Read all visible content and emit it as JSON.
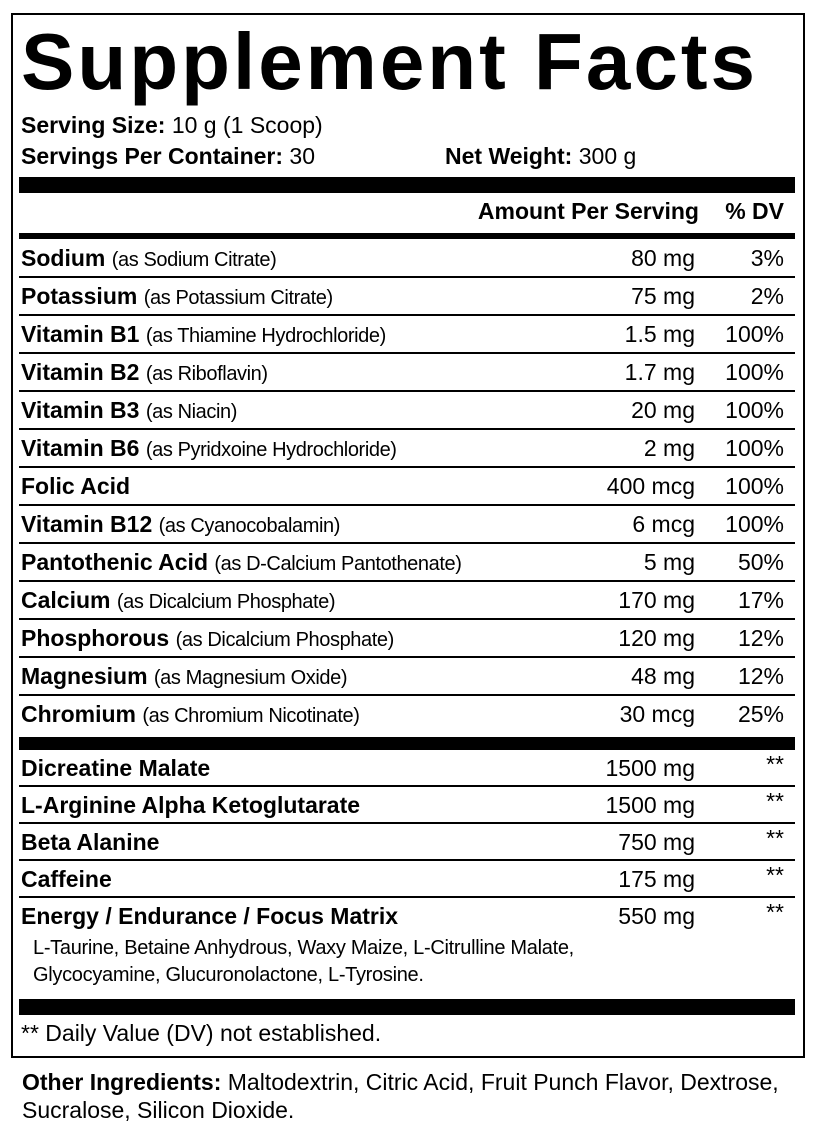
{
  "title": "Supplement Facts",
  "serving_size_label": "Serving Size:",
  "serving_size": "10 g (1 Scoop)",
  "servings_label": "Servings Per Container:",
  "servings": "30",
  "net_weight_label": "Net Weight:",
  "net_weight": "300 g",
  "header": {
    "amount": "Amount Per Serving",
    "dv": "% DV"
  },
  "vitamins": [
    {
      "name": "Sodium",
      "note": "(as Sodium Citrate)",
      "amount": "80 mg",
      "dv": "3%"
    },
    {
      "name": "Potassium",
      "note": "(as Potassium Citrate)",
      "amount": "75 mg",
      "dv": "2%"
    },
    {
      "name": "Vitamin B1",
      "note": "(as Thiamine Hydrochloride)",
      "amount": "1.5 mg",
      "dv": "100%"
    },
    {
      "name": "Vitamin B2",
      "note": "(as Riboflavin)",
      "amount": "1.7 mg",
      "dv": "100%"
    },
    {
      "name": "Vitamin B3",
      "note": "(as Niacin)",
      "amount": "20 mg",
      "dv": "100%"
    },
    {
      "name": "Vitamin B6",
      "note": "(as Pyridxoine Hydrochloride)",
      "amount": "2 mg",
      "dv": "100%"
    },
    {
      "name": "Folic Acid",
      "note": "",
      "amount": "400 mcg",
      "dv": "100%"
    },
    {
      "name": "Vitamin B12",
      "note": "(as Cyanocobalamin)",
      "amount": "6 mcg",
      "dv": "100%"
    },
    {
      "name": "Pantothenic Acid",
      "note": "(as D-Calcium Pantothenate)",
      "amount": "5 mg",
      "dv": "50%"
    },
    {
      "name": "Calcium",
      "note": "(as Dicalcium Phosphate)",
      "amount": "170 mg",
      "dv": "17%"
    },
    {
      "name": "Phosphorous",
      "note": "(as Dicalcium Phosphate)",
      "amount": "120 mg",
      "dv": "12%"
    },
    {
      "name": "Magnesium",
      "note": "(as Magnesium Oxide)",
      "amount": "48 mg",
      "dv": "12%"
    },
    {
      "name": "Chromium",
      "note": "(as Chromium Nicotinate)",
      "amount": "30 mcg",
      "dv": "25%"
    }
  ],
  "others": [
    {
      "name": "Dicreatine Malate",
      "amount": "1500 mg",
      "dv": "**"
    },
    {
      "name": "L-Arginine Alpha Ketoglutarate",
      "amount": "1500 mg",
      "dv": "**"
    },
    {
      "name": "Beta Alanine",
      "amount": "750 mg",
      "dv": "**"
    },
    {
      "name": "Caffeine",
      "amount": "175 mg",
      "dv": "**"
    },
    {
      "name": "Energy / Endurance / Focus Matrix",
      "amount": "550 mg",
      "dv": "**"
    }
  ],
  "matrix_ingredients": [
    "L-Taurine, Betaine Anhydrous, Waxy Maize, L-Citrulline Malate,",
    "Glycocyamine, Glucuronolactone, L-Tyrosine."
  ],
  "footnote": "** Daily Value (DV) not established.",
  "other_ingredients_label": "Other Ingredients:",
  "other_ingredients": "Maltodextrin, Citric Acid, Fruit Punch Flavor, Dextrose, Sucralose, Silicon Dioxide."
}
